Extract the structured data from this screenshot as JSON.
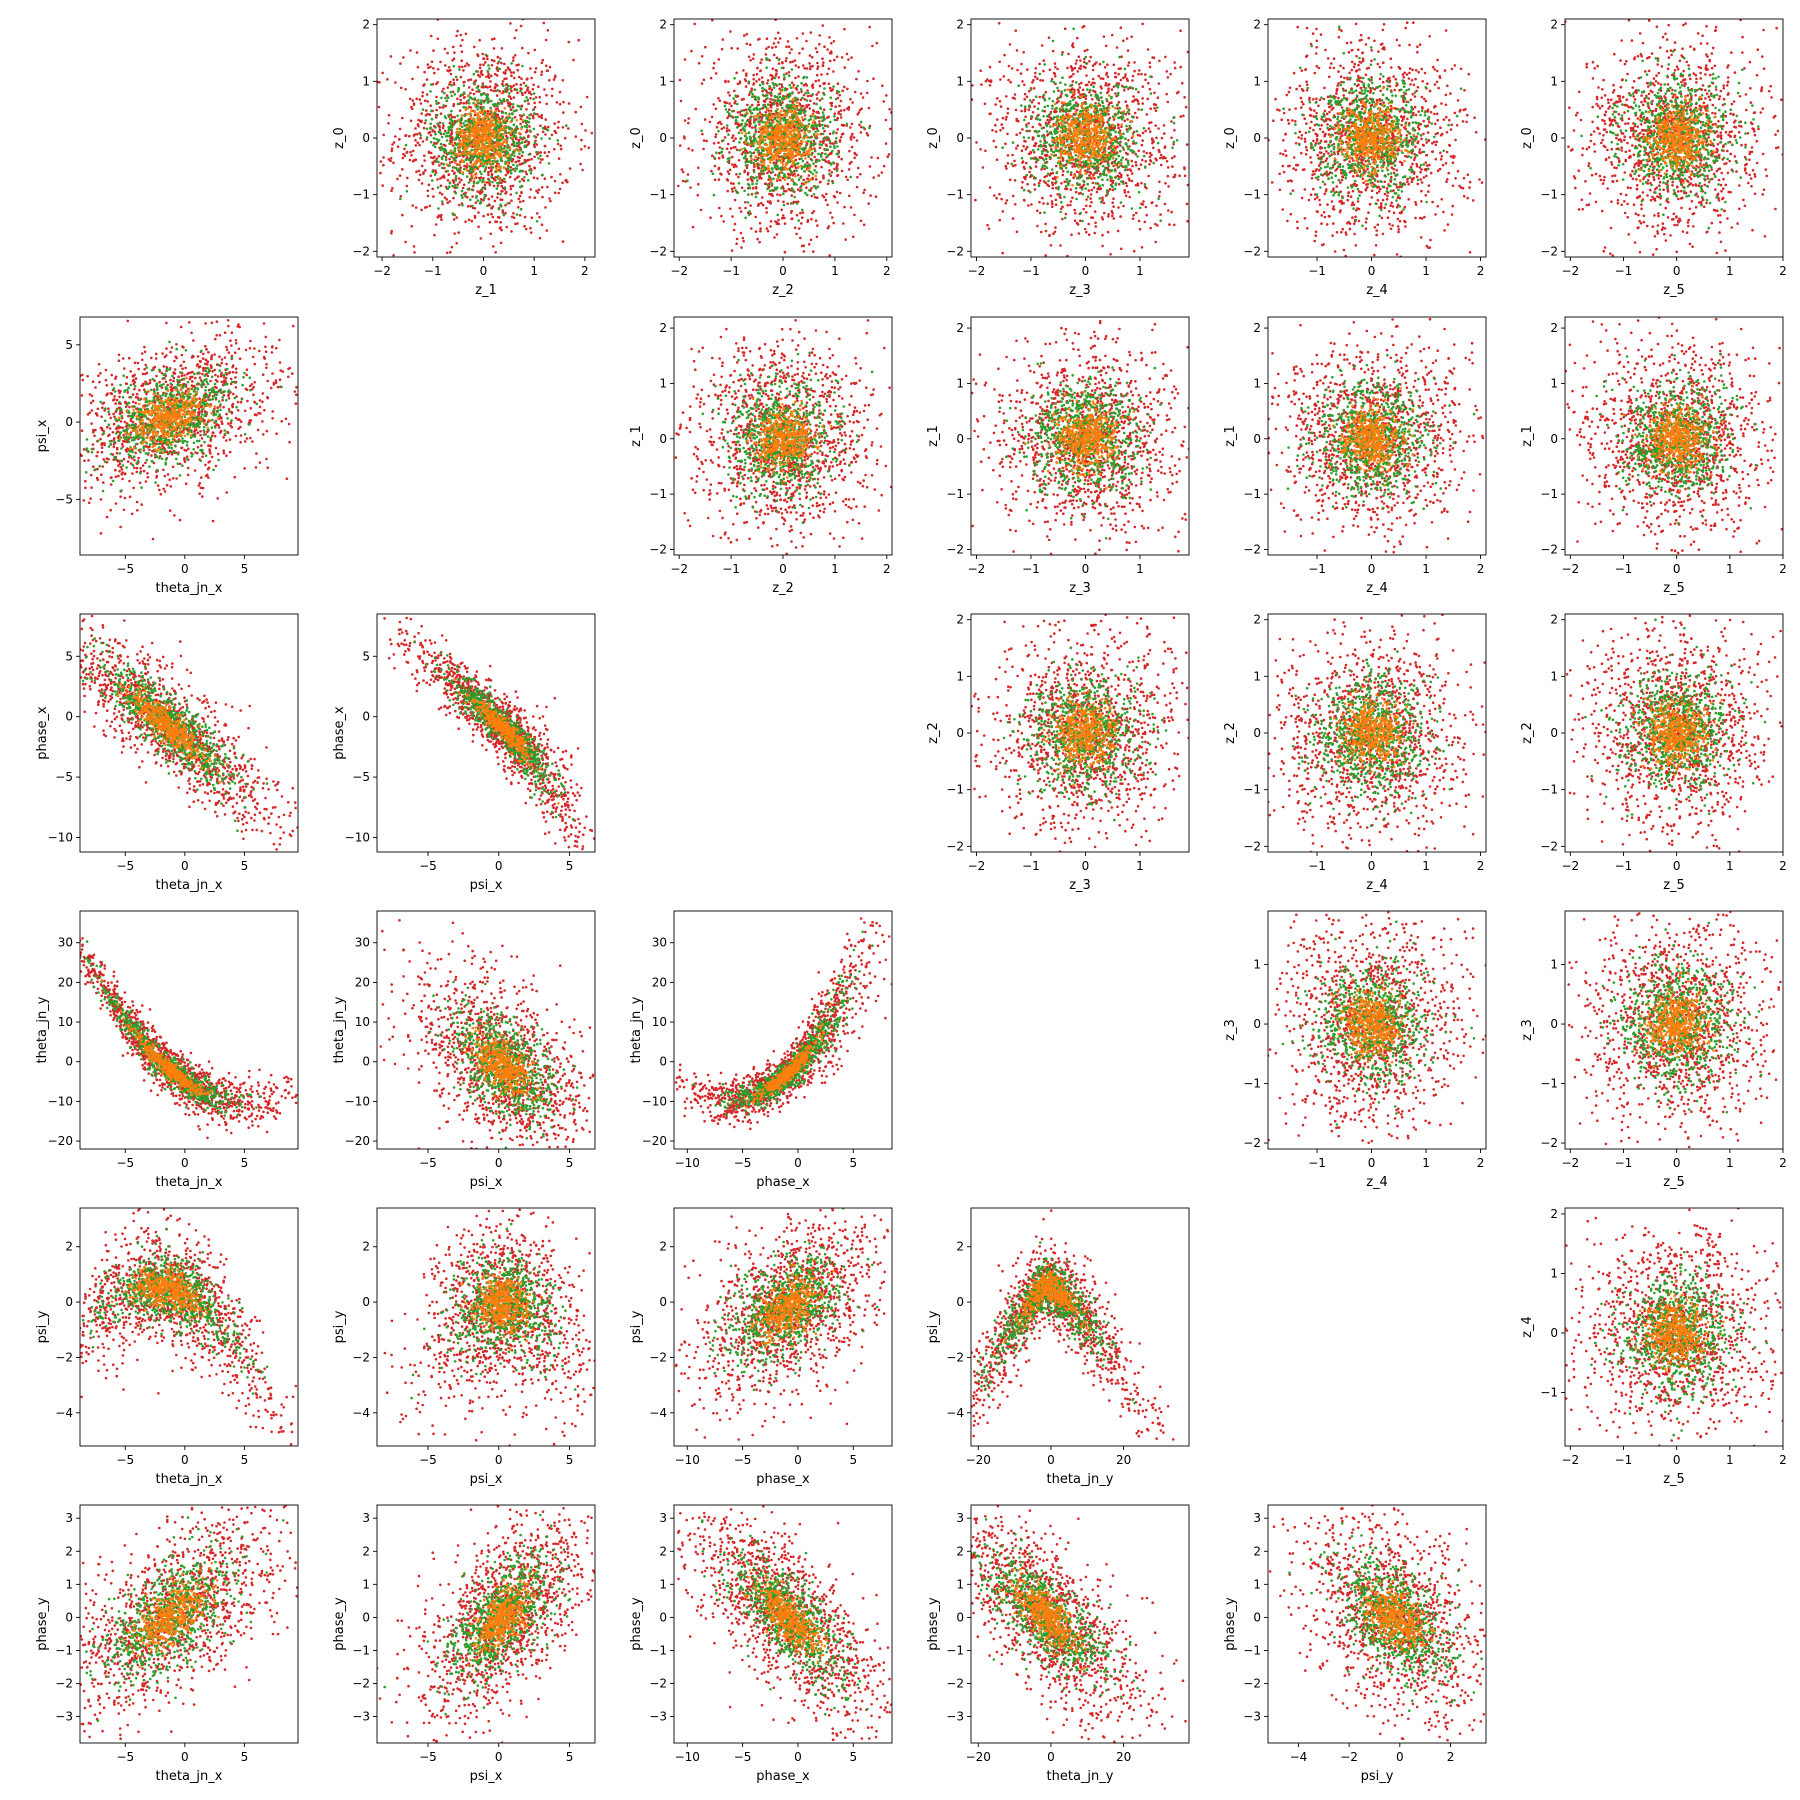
{
  "chart_data": {
    "type": "scatter",
    "layout": "corner-pairplot",
    "grid": false,
    "legend": "none",
    "series_colors": [
      "#d62728",
      "#2ca02c",
      "#ff7f0e"
    ],
    "dimensions": {
      "theta_jn_x": {
        "label": "theta_jn_x",
        "lim": [
          -8.8,
          9.5
        ],
        "ticks": [
          -5,
          0,
          5
        ],
        "mean": -1.3,
        "sd": 3.3
      },
      "psi_x": {
        "label": "psi_x",
        "lim": [
          -8.6,
          6.8
        ],
        "ticks": [
          -5,
          0,
          5
        ],
        "mean": 0.3,
        "sd": 2.1
      },
      "phase_x": {
        "label": "phase_x",
        "lim": [
          -11.2,
          8.5
        ],
        "ticks": [
          -10,
          -5,
          0,
          5
        ],
        "mean": -0.9,
        "sd": 3.0
      },
      "theta_jn_y": {
        "label": "theta_jn_y",
        "lim": [
          -22,
          38
        ],
        "ticks": [
          -20,
          0,
          20
        ],
        "ticks_vertical": [
          -20,
          -10,
          0,
          10,
          20,
          30
        ],
        "mean": -1.0,
        "sd": 9.5
      },
      "psi_y": {
        "label": "psi_y",
        "lim": [
          -5.2,
          3.4
        ],
        "ticks": [
          -4,
          -2,
          0,
          2
        ],
        "mean": -0.2,
        "sd": 1.3
      },
      "phase_y": {
        "label": "phase_y",
        "lim": [
          -3.8,
          3.4
        ],
        "ticks": [
          -3,
          -2,
          -1,
          0,
          1,
          2,
          3
        ],
        "mean": 0.0,
        "sd": 1.1
      },
      "z_0": {
        "label": "z_0",
        "lim": [
          -2.1,
          2.1
        ],
        "ticks": [
          -2,
          -1,
          0,
          1,
          2
        ],
        "mean": 0,
        "sd": 0.6
      },
      "z_1": {
        "label": "z_1",
        "lim": [
          -2.1,
          2.2
        ],
        "ticks": [
          -2,
          -1,
          0,
          1,
          2
        ],
        "mean": 0,
        "sd": 0.6
      },
      "z_2": {
        "label": "z_2",
        "lim": [
          -2.1,
          2.1
        ],
        "ticks": [
          -2,
          -1,
          0,
          1,
          2
        ],
        "mean": 0,
        "sd": 0.6
      },
      "z_3": {
        "label": "z_3",
        "lim": [
          -2.1,
          1.9
        ],
        "ticks": [
          -2,
          -1,
          0,
          1
        ],
        "mean": 0,
        "sd": 0.6
      },
      "z_4": {
        "label": "z_4",
        "lim": [
          -1.9,
          2.1
        ],
        "ticks": [
          -1,
          0,
          1,
          2
        ],
        "mean": 0,
        "sd": 0.6
      },
      "z_5": {
        "label": "z_5",
        "lim": [
          -2.1,
          2.0
        ],
        "ticks": [
          -2,
          -1,
          0,
          1,
          2
        ],
        "mean": 0,
        "sd": 0.6
      }
    },
    "panels": [
      {
        "row": 0,
        "col": 1,
        "x": "z_1",
        "y": "z_0",
        "relation": "independent"
      },
      {
        "row": 0,
        "col": 2,
        "x": "z_2",
        "y": "z_0",
        "relation": "independent"
      },
      {
        "row": 0,
        "col": 3,
        "x": "z_3",
        "y": "z_0",
        "relation": "independent"
      },
      {
        "row": 0,
        "col": 4,
        "x": "z_4",
        "y": "z_0",
        "relation": "independent"
      },
      {
        "row": 0,
        "col": 5,
        "x": "z_5",
        "y": "z_0",
        "relation": "independent"
      },
      {
        "row": 1,
        "col": 0,
        "x": "theta_jn_x",
        "y": "psi_x",
        "relation": "positive-weak"
      },
      {
        "row": 1,
        "col": 2,
        "x": "z_2",
        "y": "z_1",
        "relation": "independent"
      },
      {
        "row": 1,
        "col": 3,
        "x": "z_3",
        "y": "z_1",
        "relation": "independent"
      },
      {
        "row": 1,
        "col": 4,
        "x": "z_4",
        "y": "z_1",
        "relation": "independent"
      },
      {
        "row": 1,
        "col": 5,
        "x": "z_5",
        "y": "z_1",
        "relation": "independent"
      },
      {
        "row": 2,
        "col": 0,
        "x": "theta_jn_x",
        "y": "phase_x",
        "relation": "negative-strong"
      },
      {
        "row": 2,
        "col": 1,
        "x": "psi_x",
        "y": "phase_x",
        "relation": "negative-curved"
      },
      {
        "row": 2,
        "col": 3,
        "x": "z_3",
        "y": "z_2",
        "relation": "independent"
      },
      {
        "row": 2,
        "col": 4,
        "x": "z_4",
        "y": "z_2",
        "relation": "independent"
      },
      {
        "row": 2,
        "col": 5,
        "x": "z_5",
        "y": "z_2",
        "relation": "independent"
      },
      {
        "row": 3,
        "col": 0,
        "x": "theta_jn_x",
        "y": "theta_jn_y",
        "relation": "negative-convex"
      },
      {
        "row": 3,
        "col": 1,
        "x": "psi_x",
        "y": "theta_jn_y",
        "relation": "negative-spread"
      },
      {
        "row": 3,
        "col": 2,
        "x": "phase_x",
        "y": "theta_jn_y",
        "relation": "positive-convex"
      },
      {
        "row": 3,
        "col": 4,
        "x": "z_4",
        "y": "z_3",
        "relation": "independent"
      },
      {
        "row": 3,
        "col": 5,
        "x": "z_5",
        "y": "z_3",
        "relation": "independent"
      },
      {
        "row": 4,
        "col": 0,
        "x": "theta_jn_x",
        "y": "psi_y",
        "relation": "arch"
      },
      {
        "row": 4,
        "col": 1,
        "x": "psi_x",
        "y": "psi_y",
        "relation": "weak"
      },
      {
        "row": 4,
        "col": 2,
        "x": "phase_x",
        "y": "psi_y",
        "relation": "positive-weak"
      },
      {
        "row": 4,
        "col": 3,
        "x": "theta_jn_y",
        "y": "psi_y",
        "relation": "peak"
      },
      {
        "row": 4,
        "col": 5,
        "x": "z_5",
        "y": "z_4",
        "relation": "independent"
      },
      {
        "row": 5,
        "col": 0,
        "x": "theta_jn_x",
        "y": "phase_y",
        "relation": "positive"
      },
      {
        "row": 5,
        "col": 1,
        "x": "psi_x",
        "y": "phase_y",
        "relation": "positive"
      },
      {
        "row": 5,
        "col": 2,
        "x": "phase_x",
        "y": "phase_y",
        "relation": "negative"
      },
      {
        "row": 5,
        "col": 3,
        "x": "theta_jn_y",
        "y": "phase_y",
        "relation": "negative"
      },
      {
        "row": 5,
        "col": 4,
        "x": "psi_y",
        "y": "phase_y",
        "relation": "negative-weak"
      }
    ]
  }
}
